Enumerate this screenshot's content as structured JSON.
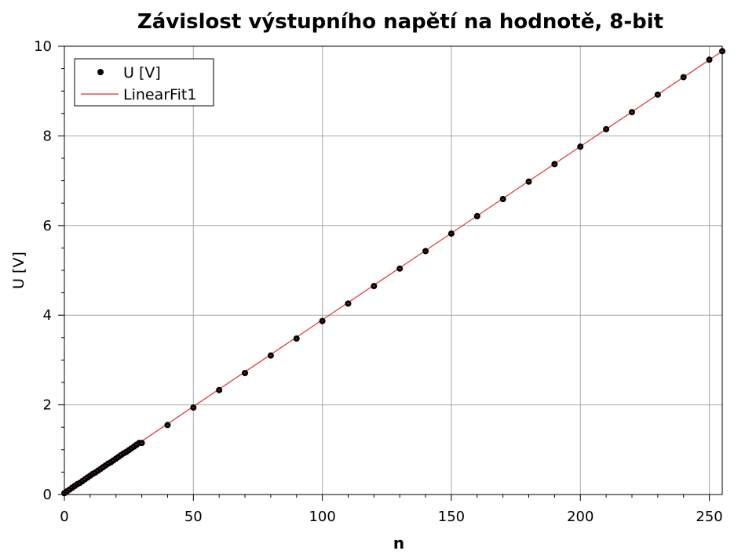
{
  "chart_data": {
    "type": "scatter",
    "title": "Závislost výstupního napětí na hodnotě, 8-bit",
    "xlabel": "n",
    "ylabel": "U [V]",
    "xlim": [
      0,
      255
    ],
    "ylim": [
      0,
      10
    ],
    "x_ticks": [
      "0",
      "50",
      "100",
      "150",
      "200",
      "250"
    ],
    "y_ticks": [
      "0",
      "2",
      "4",
      "6",
      "8",
      "10"
    ],
    "grid": true,
    "legend_position": "top-left",
    "series": [
      {
        "name": "U [V]",
        "kind": "points",
        "color": "#000000",
        "x": [
          0,
          1,
          2,
          3,
          4,
          5,
          6,
          7,
          8,
          9,
          10,
          11,
          12,
          13,
          14,
          15,
          16,
          17,
          18,
          19,
          20,
          21,
          22,
          23,
          24,
          25,
          26,
          27,
          28,
          29,
          30,
          40,
          50,
          60,
          70,
          80,
          90,
          100,
          110,
          120,
          130,
          140,
          150,
          160,
          170,
          180,
          190,
          200,
          210,
          220,
          230,
          240,
          250,
          255
        ],
        "y": [
          0.03,
          0.07,
          0.11,
          0.15,
          0.19,
          0.23,
          0.26,
          0.3,
          0.34,
          0.38,
          0.42,
          0.46,
          0.49,
          0.53,
          0.57,
          0.61,
          0.65,
          0.69,
          0.72,
          0.76,
          0.8,
          0.84,
          0.88,
          0.92,
          0.95,
          0.99,
          1.03,
          1.07,
          1.11,
          1.15,
          1.15,
          1.55,
          1.94,
          2.33,
          2.71,
          3.1,
          3.48,
          3.87,
          4.26,
          4.65,
          5.04,
          5.43,
          5.82,
          6.21,
          6.59,
          6.98,
          7.37,
          7.76,
          8.15,
          8.53,
          8.92,
          9.31,
          9.7,
          9.89
        ]
      },
      {
        "name": "LinearFit1",
        "kind": "line",
        "color": "#e03030",
        "x": [
          0,
          255
        ],
        "y": [
          0.03,
          9.89
        ]
      }
    ]
  }
}
